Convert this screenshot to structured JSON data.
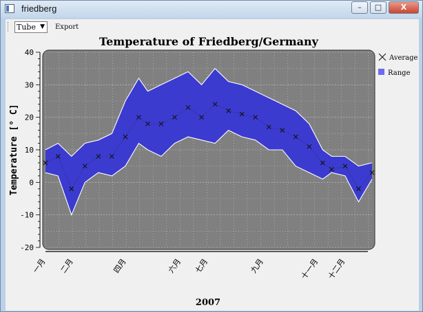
{
  "window": {
    "title": "friedberg",
    "minimize_glyph": "–",
    "maximize_glyph": "□",
    "close_glyph": "X"
  },
  "toolbar": {
    "mode_value": "Tube",
    "export_label": "Export"
  },
  "chart_data": {
    "type": "line",
    "title": "Temperature of Friedberg/Germany",
    "xlabel": "2007",
    "ylabel": "Temperature [° C]",
    "ylim": [
      -20,
      40
    ],
    "yticks": [
      -20,
      -10,
      0,
      10,
      20,
      30,
      40
    ],
    "x_tick_labels": [
      "一月",
      "二月",
      "四月",
      "六月",
      "七月",
      "九月",
      "十一月",
      "十二月"
    ],
    "x_tick_days": [
      1,
      32,
      91,
      152,
      182,
      244,
      305,
      335
    ],
    "xlim": [
      1,
      365
    ],
    "grid": true,
    "legend": {
      "position": "right",
      "entries": [
        "Average",
        "Range"
      ]
    },
    "colors": {
      "range_fill": "#3b3bd0",
      "range_edge": "#ffffff",
      "average_marker": "#111111",
      "plot_bg": "#808080"
    },
    "series": [
      {
        "name": "Range",
        "kind": "band",
        "day": [
          1,
          15,
          30,
          45,
          60,
          75,
          90,
          105,
          115,
          130,
          145,
          160,
          175,
          190,
          205,
          220,
          235,
          250,
          265,
          280,
          295,
          310,
          320,
          335,
          350,
          365
        ],
        "low": [
          3,
          2,
          -10,
          0,
          3,
          2,
          5,
          12,
          10,
          8,
          12,
          14,
          13,
          12,
          16,
          14,
          13,
          10,
          10,
          5,
          3,
          1,
          3,
          2,
          -6,
          1
        ],
        "high": [
          10,
          12,
          8,
          12,
          13,
          15,
          25,
          32,
          28,
          30,
          32,
          34,
          30,
          35,
          31,
          30,
          28,
          26,
          24,
          22,
          18,
          10,
          8,
          8,
          5,
          6
        ]
      },
      {
        "name": "Average",
        "kind": "marker",
        "day": [
          1,
          15,
          30,
          45,
          60,
          75,
          90,
          105,
          115,
          130,
          145,
          160,
          175,
          190,
          205,
          220,
          235,
          250,
          265,
          280,
          295,
          310,
          320,
          335,
          350,
          365
        ],
        "values": [
          6,
          8,
          -2,
          5,
          8,
          8,
          14,
          20,
          18,
          18,
          20,
          23,
          20,
          24,
          22,
          21,
          20,
          17,
          16,
          14,
          11,
          6,
          4,
          5,
          -2,
          3
        ]
      }
    ]
  }
}
